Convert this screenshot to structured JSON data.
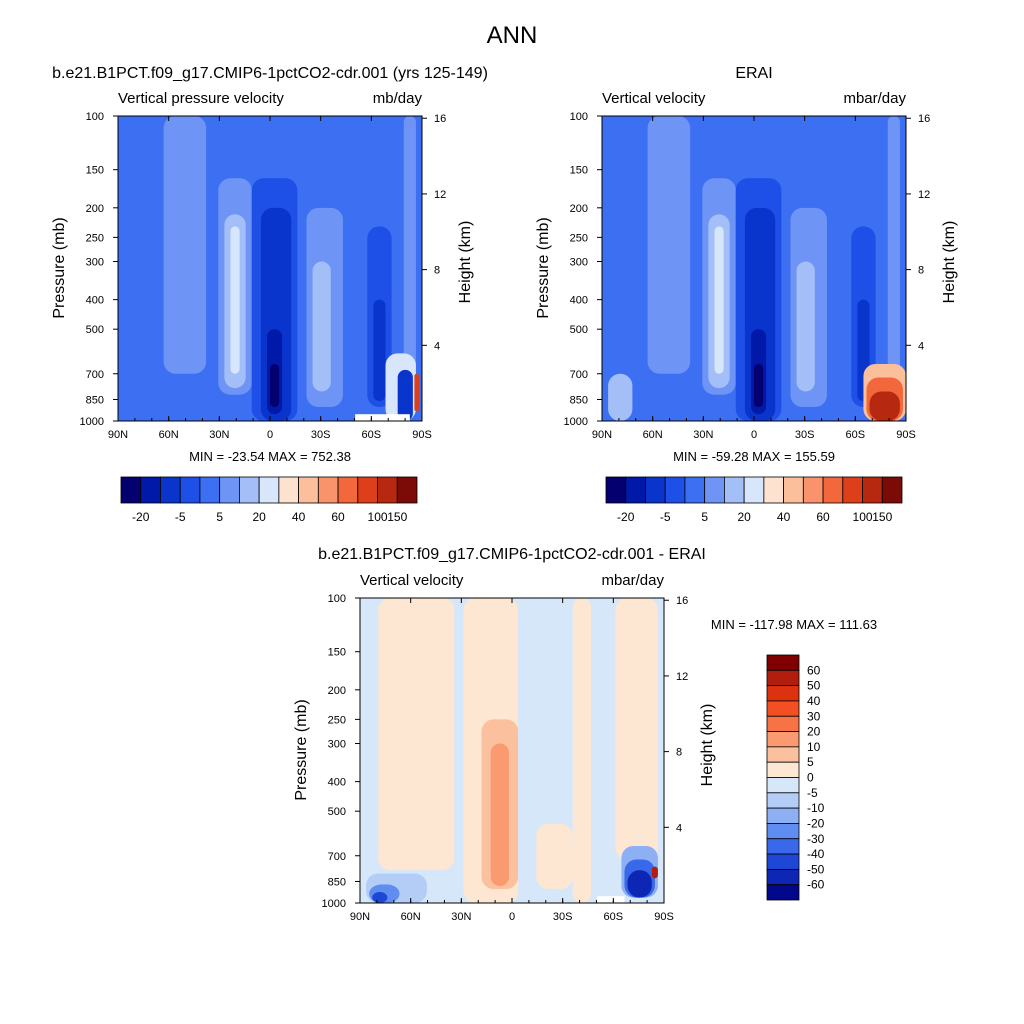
{
  "figure": {
    "title": "ANN"
  },
  "chart_data": [
    {
      "type": "heatmap",
      "id": "model",
      "title": "b.e21.B1PCT.f09_g17.CMIP6-1pctCO2-cdr.001 (yrs 125-149)",
      "left_label": "Vertical pressure velocity",
      "right_label": "mb/day",
      "ylabel": "Pressure (mb)",
      "ylabel_right": "Height (km)",
      "x_ticks": [
        "90N",
        "60N",
        "30N",
        "0",
        "30S",
        "60S",
        "90S"
      ],
      "y_ticks": [
        "100",
        "150",
        "200",
        "250",
        "300",
        "400",
        "500",
        "700",
        "850",
        "1000"
      ],
      "y_right_ticks": [
        "4",
        "8",
        "12",
        "16"
      ],
      "ylim": [
        1000,
        100
      ],
      "xlim": [
        "90N",
        "90S"
      ],
      "log_pressure_axis": true,
      "stats": "MIN = -23.54  MAX = 752.38",
      "min": -23.54,
      "max": 752.38,
      "colorbar_labels": [
        "-20",
        "-5",
        "5",
        "20",
        "40",
        "60",
        "100",
        "150"
      ],
      "colorbar_orientation": "horizontal",
      "colors": [
        "#04006f",
        "#0019a8",
        "#0a35cc",
        "#1e4fe6",
        "#3d6ff2",
        "#6e95f5",
        "#a4bff7",
        "#d7e6fb",
        "#fde3cf",
        "#fbbf9b",
        "#f8936b",
        "#f2683c",
        "#dd3f1a",
        "#b72811",
        "#7c0a07"
      ]
    },
    {
      "type": "heatmap",
      "id": "obs",
      "title": "ERAI",
      "left_label": "Vertical velocity",
      "right_label": "mbar/day",
      "ylabel": "Pressure (mb)",
      "ylabel_right": "Height (km)",
      "x_ticks": [
        "90N",
        "60N",
        "30N",
        "0",
        "30S",
        "60S",
        "90S"
      ],
      "y_ticks": [
        "100",
        "150",
        "200",
        "250",
        "300",
        "400",
        "500",
        "700",
        "850",
        "1000"
      ],
      "y_right_ticks": [
        "4",
        "8",
        "12",
        "16"
      ],
      "ylim": [
        1000,
        100
      ],
      "xlim": [
        "90N",
        "90S"
      ],
      "log_pressure_axis": true,
      "stats": "MIN = -59.28  MAX = 155.59",
      "min": -59.28,
      "max": 155.59,
      "colorbar_labels": [
        "-20",
        "-5",
        "5",
        "20",
        "40",
        "60",
        "100",
        "150"
      ],
      "colorbar_orientation": "horizontal",
      "colors": [
        "#04006f",
        "#0019a8",
        "#0a35cc",
        "#1e4fe6",
        "#3d6ff2",
        "#6e95f5",
        "#a4bff7",
        "#d7e6fb",
        "#fde3cf",
        "#fbbf9b",
        "#f8936b",
        "#f2683c",
        "#dd3f1a",
        "#b72811",
        "#7c0a07"
      ]
    },
    {
      "type": "heatmap",
      "id": "diff",
      "title": "b.e21.B1PCT.f09_g17.CMIP6-1pctCO2-cdr.001 - ERAI",
      "left_label": "Vertical velocity",
      "right_label": "mbar/day",
      "ylabel": "Pressure (mb)",
      "ylabel_right": "Height (km)",
      "x_ticks": [
        "90N",
        "60N",
        "30N",
        "0",
        "30S",
        "60S",
        "90S"
      ],
      "y_ticks": [
        "100",
        "150",
        "200",
        "250",
        "300",
        "400",
        "500",
        "700",
        "850",
        "1000"
      ],
      "y_right_ticks": [
        "4",
        "8",
        "12",
        "16"
      ],
      "ylim": [
        1000,
        100
      ],
      "xlim": [
        "90N",
        "90S"
      ],
      "log_pressure_axis": true,
      "stats": "MIN = -117.98  MAX = 111.63",
      "min": -117.98,
      "max": 111.63,
      "colorbar_labels": [
        "60",
        "50",
        "40",
        "30",
        "20",
        "10",
        "5",
        "0",
        "-5",
        "-10",
        "-20",
        "-30",
        "-40",
        "-50",
        "-60"
      ],
      "colorbar_orientation": "vertical",
      "colors": [
        "#800000",
        "#b21e0e",
        "#dc3210",
        "#f24f22",
        "#f77245",
        "#f99a70",
        "#fbc09d",
        "#fde6d2",
        "#d7e7fa",
        "#b3cdf7",
        "#8cb0f3",
        "#5f8ef0",
        "#3a68ea",
        "#1f47d6",
        "#0d26b4",
        "#03088a"
      ]
    }
  ]
}
